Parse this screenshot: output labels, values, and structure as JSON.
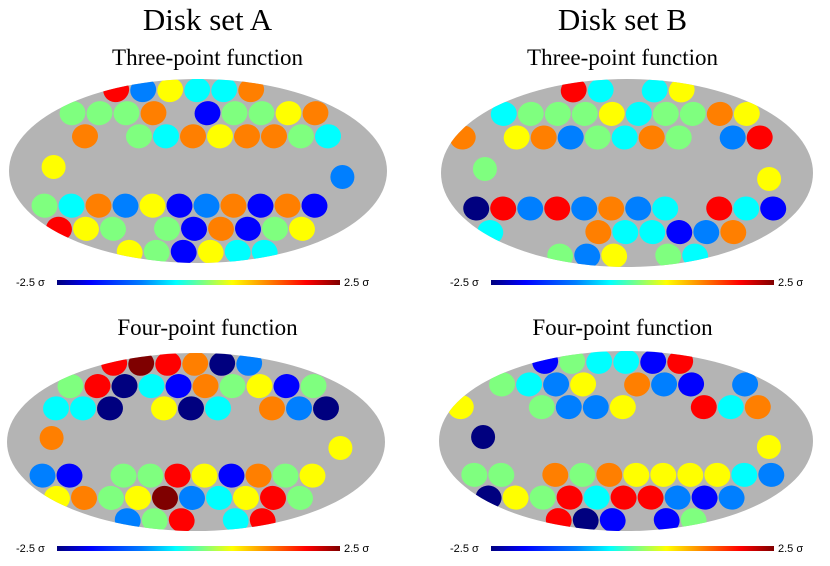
{
  "columns": [
    {
      "title": "Disk set A",
      "maps": [
        {
          "title": "Three-point function",
          "scale_min": "-2.5 σ",
          "scale_max": "2.5 σ"
        },
        {
          "title": "Four-point function",
          "scale_min": "-2.5 σ",
          "scale_max": "2.5 σ"
        }
      ]
    },
    {
      "title": "Disk set B",
      "maps": [
        {
          "title": "Three-point function",
          "scale_min": "-2.5 σ",
          "scale_max": "2.5 σ"
        },
        {
          "title": "Four-point function",
          "scale_min": "-2.5 σ",
          "scale_max": "2.5 σ"
        }
      ]
    }
  ],
  "colors": {
    "masked_region": "#b4b4b4",
    "colormap": [
      "#00007f",
      "#0000ff",
      "#007fff",
      "#00ffff",
      "#7fff7f",
      "#ffff00",
      "#ff7f00",
      "#ff0000",
      "#7f0000"
    ]
  }
}
